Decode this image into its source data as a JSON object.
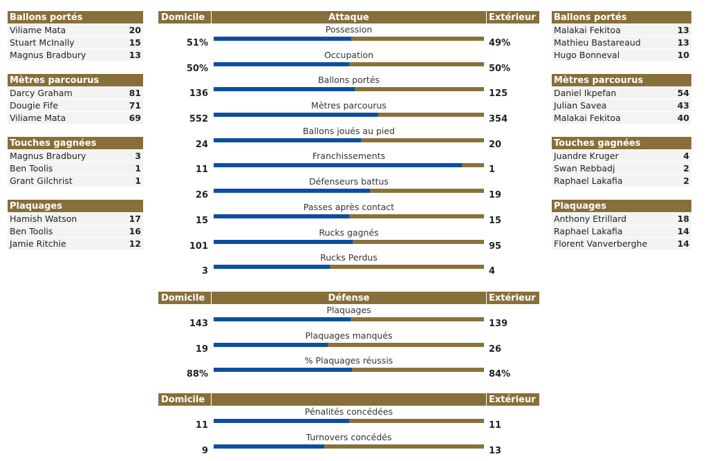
{
  "left": [
    {
      "title": "Ballons portés",
      "rows": [
        {
          "name": "Viliame Mata",
          "value": "20"
        },
        {
          "name": "Stuart McInally",
          "value": "15"
        },
        {
          "name": "Magnus Bradbury",
          "value": "13"
        }
      ]
    },
    {
      "title": "Mètres parcourus",
      "rows": [
        {
          "name": "Darcy Graham",
          "value": "81"
        },
        {
          "name": "Dougie Fife",
          "value": "71"
        },
        {
          "name": "Viliame Mata",
          "value": "69"
        }
      ]
    },
    {
      "title": "Touches gagnées",
      "rows": [
        {
          "name": "Magnus Bradbury",
          "value": "3"
        },
        {
          "name": "Ben Toolis",
          "value": "1"
        },
        {
          "name": "Grant Gilchrist",
          "value": "1"
        }
      ]
    },
    {
      "title": "Plaquages",
      "rows": [
        {
          "name": "Hamish Watson",
          "value": "17"
        },
        {
          "name": "Ben Toolis",
          "value": "16"
        },
        {
          "name": "Jamie Ritchie",
          "value": "12"
        }
      ]
    }
  ],
  "right": [
    {
      "title": "Ballons portés",
      "rows": [
        {
          "name": "Malakai Fekitoa",
          "value": "13"
        },
        {
          "name": "Mathieu Bastareaud",
          "value": "13"
        },
        {
          "name": "Hugo Bonneval",
          "value": "10"
        }
      ]
    },
    {
      "title": "Mètres parcourus",
      "rows": [
        {
          "name": "Daniel Ikpefan",
          "value": "54"
        },
        {
          "name": "Julian Savea",
          "value": "43"
        },
        {
          "name": "Malakai Fekitoa",
          "value": "40"
        }
      ]
    },
    {
      "title": "Touches gagnées",
      "rows": [
        {
          "name": "Juandre Kruger",
          "value": "4"
        },
        {
          "name": "Swan Rebbadj",
          "value": "2"
        },
        {
          "name": "Raphael Lakafia",
          "value": "2"
        }
      ]
    },
    {
      "title": "Plaquages",
      "rows": [
        {
          "name": "Anthony Etrillard",
          "value": "18"
        },
        {
          "name": "Raphael Lakafia",
          "value": "14"
        },
        {
          "name": "Florent Vanverberghe",
          "value": "14"
        }
      ]
    }
  ],
  "sections": [
    {
      "home": "Domicile",
      "title": "Attaque",
      "away": "Extérieur",
      "stats": [
        {
          "label": "Possession",
          "home": "51%",
          "away": "49%",
          "share": 0.51
        },
        {
          "label": "Occupation",
          "home": "50%",
          "away": "50%",
          "share": 0.5
        },
        {
          "label": "Ballons portés",
          "home": "136",
          "away": "125",
          "share": 0.521
        },
        {
          "label": "Mètres parcourus",
          "home": "552",
          "away": "354",
          "share": 0.609
        },
        {
          "label": "Ballons joués au pied",
          "home": "24",
          "away": "20",
          "share": 0.545
        },
        {
          "label": "Franchissements",
          "home": "11",
          "away": "1",
          "share": 0.917
        },
        {
          "label": "Défenseurs battus",
          "home": "26",
          "away": "19",
          "share": 0.578
        },
        {
          "label": "Passes après contact",
          "home": "15",
          "away": "15",
          "share": 0.5
        },
        {
          "label": "Rucks gagnés",
          "home": "101",
          "away": "95",
          "share": 0.515
        },
        {
          "label": "Rucks Perdus",
          "home": "3",
          "away": "4",
          "share": 0.429
        }
      ]
    },
    {
      "home": "Domicile",
      "title": "Défense",
      "away": "Extérieur",
      "stats": [
        {
          "label": "Plaquages",
          "home": "143",
          "away": "139",
          "share": 0.507
        },
        {
          "label": "Plaquages manqués",
          "home": "19",
          "away": "26",
          "share": 0.422
        },
        {
          "label": "% Plaquages réussis",
          "home": "88%",
          "away": "84%",
          "share": 0.512
        }
      ]
    },
    {
      "home": "Domicile",
      "title": "",
      "away": "Extérieur",
      "stats": [
        {
          "label": "Pénalités concédées",
          "home": "11",
          "away": "11",
          "share": 0.5
        },
        {
          "label": "Turnovers concédés",
          "home": "9",
          "away": "13",
          "share": 0.409
        }
      ]
    }
  ],
  "colors": {
    "header": "#876f3a",
    "home_bar": "#0b4fa0",
    "away_bar": "#8a713a"
  }
}
